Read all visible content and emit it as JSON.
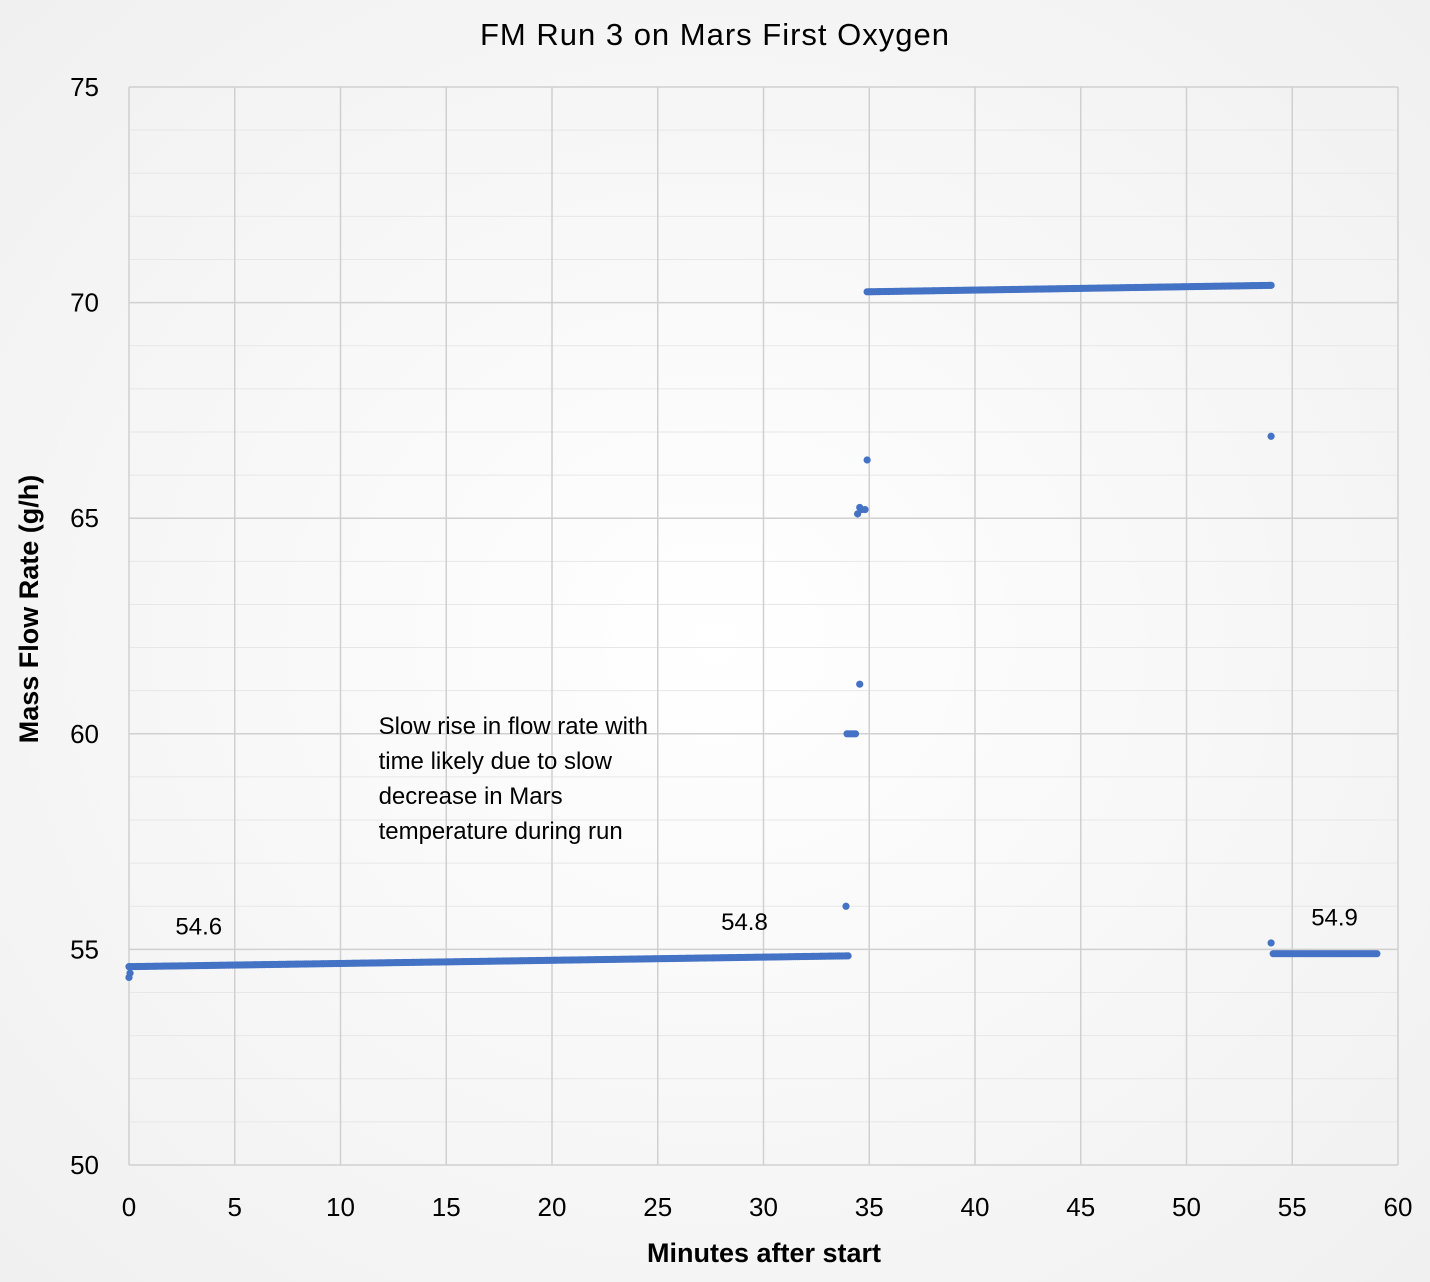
{
  "chart_data": {
    "type": "scatter",
    "title": "FM Run 3 on Mars First Oxygen",
    "xlabel": "Minutes after start",
    "ylabel": "Mass Flow Rate (g/h)",
    "xlim": [
      0,
      60
    ],
    "ylim": [
      50,
      75
    ],
    "x_ticks": [
      "0",
      "5",
      "10",
      "15",
      "20",
      "25",
      "30",
      "35",
      "40",
      "45",
      "50",
      "55",
      "60"
    ],
    "y_ticks": [
      "50",
      "55",
      "60",
      "65",
      "70",
      "75"
    ],
    "grid": "major and minor",
    "legend": "none",
    "series_color": "#4472C4",
    "series": [
      {
        "segments": [
          {
            "x_start": 0.0,
            "x_end": 34.0,
            "y_start": 54.6,
            "y_end": 54.85,
            "step": 0.1
          },
          {
            "x_start": 34.9,
            "x_end": 54.0,
            "y_start": 70.25,
            "y_end": 70.4,
            "step": 0.1
          },
          {
            "x_start": 54.1,
            "x_end": 59.0,
            "y_start": 54.9,
            "y_end": 54.9,
            "step": 0.1
          }
        ],
        "points": [
          {
            "x": 0.0,
            "y": 54.35
          },
          {
            "x": 0.05,
            "y": 54.45
          },
          {
            "x": 33.9,
            "y": 56.0
          },
          {
            "x": 33.95,
            "y": 60.0
          },
          {
            "x": 34.05,
            "y": 60.0
          },
          {
            "x": 34.15,
            "y": 60.0
          },
          {
            "x": 34.25,
            "y": 60.0
          },
          {
            "x": 34.35,
            "y": 60.0
          },
          {
            "x": 34.55,
            "y": 61.15
          },
          {
            "x": 34.45,
            "y": 65.1
          },
          {
            "x": 34.55,
            "y": 65.25
          },
          {
            "x": 34.65,
            "y": 65.2
          },
          {
            "x": 34.8,
            "y": 65.2
          },
          {
            "x": 34.9,
            "y": 66.35
          },
          {
            "x": 54.0,
            "y": 66.9
          },
          {
            "x": 54.0,
            "y": 55.15
          }
        ]
      }
    ],
    "data_labels": [
      {
        "text": "54.6",
        "x": 3.3,
        "y": 55.35
      },
      {
        "text": "54.8",
        "x": 29.1,
        "y": 55.45
      },
      {
        "text": "54.9",
        "x": 57.0,
        "y": 55.55
      }
    ],
    "annotations": [
      {
        "lines": [
          "Slow rise in flow rate with",
          "time likely due to slow",
          "decrease in Mars",
          "temperature during run"
        ],
        "x": 11.8,
        "y": 60.0
      }
    ]
  }
}
